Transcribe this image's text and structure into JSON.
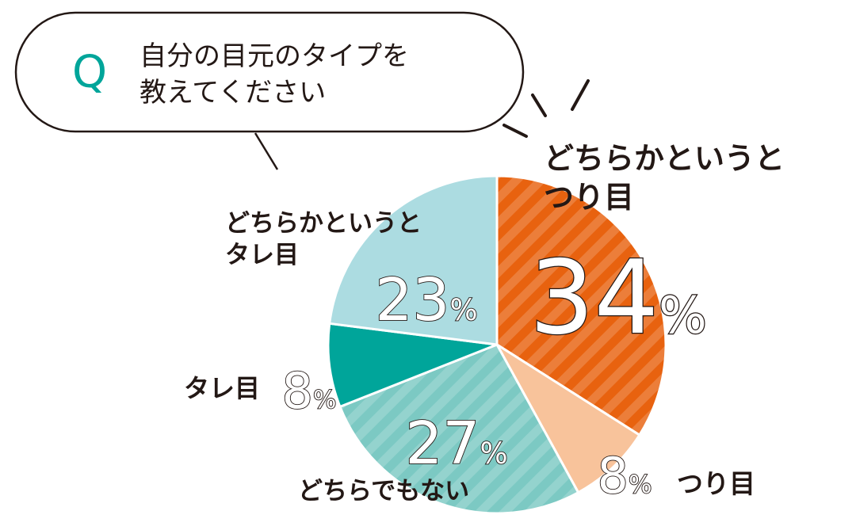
{
  "question_mark": "Q",
  "question_lines": [
    "自分の目元のタイプを",
    "教えてください"
  ],
  "chart_data": {
    "type": "pie",
    "categories": [
      "どちらかというとつり目",
      "つり目",
      "どちらでもない",
      "タレ目",
      "どちらかというとタレ目"
    ],
    "values": [
      34,
      8,
      27,
      8,
      23
    ],
    "value_labels": [
      "34%",
      "8%",
      "27%",
      "8%",
      "23%"
    ],
    "colors": [
      "#e8620f",
      "#f8c39b",
      "#7cc9c3",
      "#00a59a",
      "#acdce1"
    ],
    "hatched": [
      true,
      false,
      true,
      false,
      false
    ]
  }
}
